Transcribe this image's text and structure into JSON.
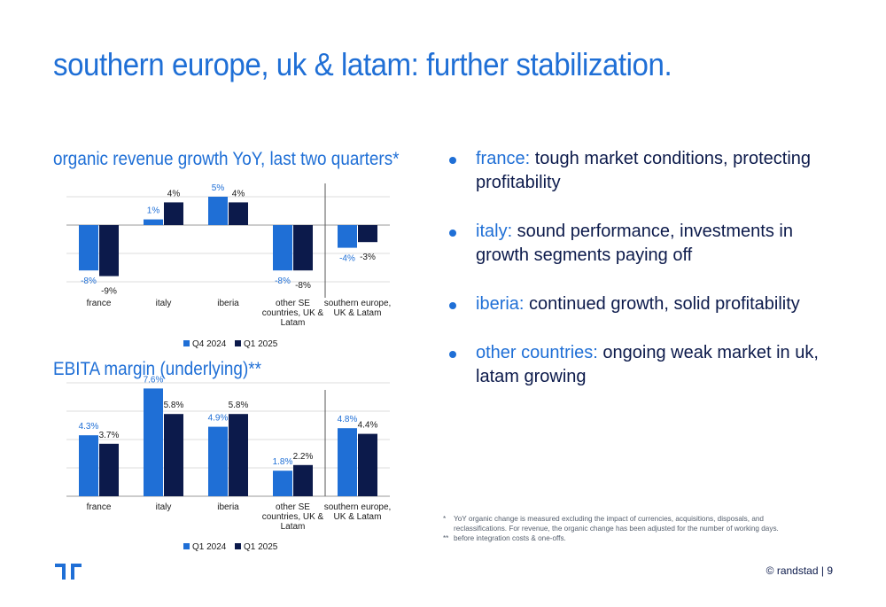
{
  "slide": {
    "title": "southern europe, uk & latam: further stabilization.",
    "footer": "© randstad | 9"
  },
  "bullets": [
    {
      "highlight": "france:",
      "text": " tough market conditions, protecting profitability"
    },
    {
      "highlight": "italy:",
      "text": " sound performance, investments in growth segments paying off"
    },
    {
      "highlight": "iberia:",
      "text": " continued growth, solid profitability"
    },
    {
      "highlight": "other countries:",
      "text": " ongoing weak market in uk, latam growing"
    }
  ],
  "footnotes": [
    {
      "marker": "*",
      "text": "YoY organic change is measured excluding the impact of currencies, acquisitions, disposals, and reclassifications. For revenue, the organic change has been adjusted for the number of working days."
    },
    {
      "marker": "**",
      "text": "before integration costs & one-offs."
    }
  ],
  "colors": {
    "accent": "#1f6fd6",
    "dark": "#0c1a4b",
    "bar1": "#1f6fd6",
    "bar2": "#0c1a4b"
  },
  "chart_data": [
    {
      "type": "bar",
      "title": "organic revenue growth YoY, last two quarters*",
      "categories": [
        "france",
        "italy",
        "iberia",
        "other SE countries, UK & Latam",
        "southern europe, UK & Latam"
      ],
      "category_lines": [
        [
          "france"
        ],
        [
          "italy"
        ],
        [
          "iberia"
        ],
        [
          "other SE",
          "countries, UK &",
          "Latam"
        ],
        [
          "southern europe,",
          "UK & Latam"
        ]
      ],
      "series": [
        {
          "name": "Q4 2024",
          "values": [
            -8,
            1,
            5,
            -8,
            -4
          ],
          "labels": [
            "-8%",
            "1%",
            "5%",
            "-8%",
            "-4%"
          ]
        },
        {
          "name": "Q1 2025",
          "values": [
            -9,
            4,
            4,
            -8,
            -3
          ],
          "labels": [
            "-9%",
            "4%",
            "4%",
            "-8%",
            "-3%"
          ]
        }
      ],
      "ylim": [
        -10,
        5
      ],
      "grid": true,
      "legend": "bottom",
      "separator_before_last": true
    },
    {
      "type": "bar",
      "title": "EBITA margin (underlying)**",
      "categories": [
        "france",
        "italy",
        "iberia",
        "other SE countries, UK & Latam",
        "southern europe, UK & Latam"
      ],
      "category_lines": [
        [
          "france"
        ],
        [
          "italy"
        ],
        [
          "iberia"
        ],
        [
          "other SE",
          "countries, UK &",
          "Latam"
        ],
        [
          "southern europe,",
          "UK & Latam"
        ]
      ],
      "series": [
        {
          "name": "Q1 2024",
          "values": [
            4.3,
            7.6,
            4.9,
            1.8,
            4.8
          ],
          "labels": [
            "4.3%",
            "7.6%",
            "4.9%",
            "1.8%",
            "4.8%"
          ]
        },
        {
          "name": "Q1 2025",
          "values": [
            3.7,
            5.8,
            5.8,
            2.2,
            4.4
          ],
          "labels": [
            "3.7%",
            "5.8%",
            "5.8%",
            "2.2%",
            "4.4%"
          ]
        }
      ],
      "ylim": [
        0,
        8
      ],
      "grid": true,
      "legend": "bottom",
      "separator_before_last": true
    }
  ]
}
